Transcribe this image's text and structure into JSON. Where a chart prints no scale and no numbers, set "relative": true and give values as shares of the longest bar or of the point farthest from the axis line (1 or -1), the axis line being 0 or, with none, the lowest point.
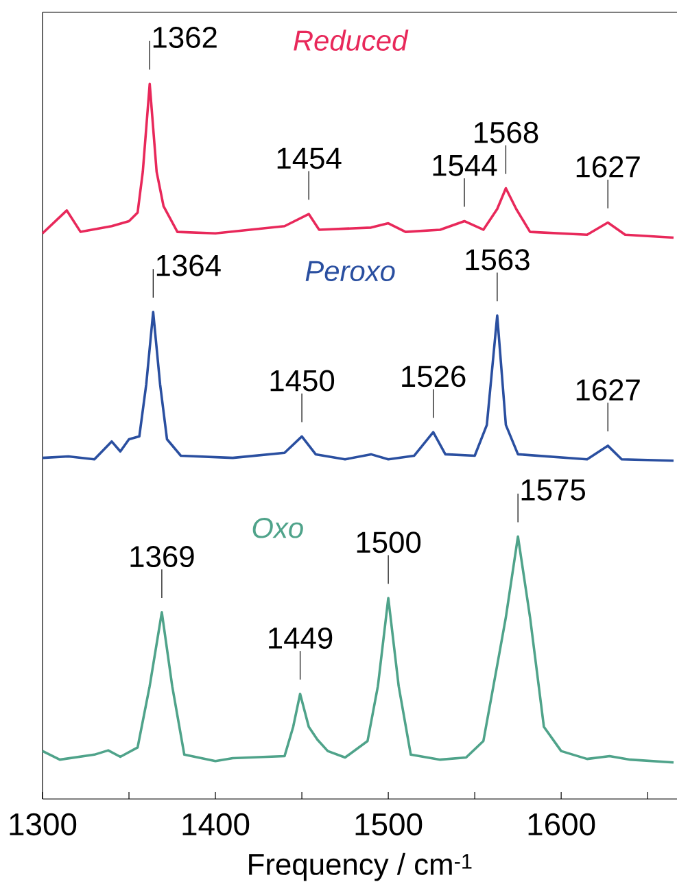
{
  "chart_data": {
    "type": "line",
    "xlabel": "Frequency / cm$^{-1}$",
    "relative": true,
    "xlim": [
      1300,
      1667
    ],
    "xticks": [
      1300,
      {
        "value": 1350,
        "label": null
      },
      1400,
      {
        "value": 1450,
        "label": null
      },
      1500,
      {
        "value": 1550,
        "label": null
      },
      1600,
      {
        "value": 1650,
        "label": null
      }
    ],
    "grid": false,
    "marker": "none",
    "line_style": "solid",
    "series": [
      {
        "name": "Reduced",
        "color": "#e8285a",
        "x": [
          1300,
          1314,
          1322,
          1340,
          1350,
          1355,
          1358,
          1362,
          1366,
          1370,
          1378,
          1400,
          1440,
          1454,
          1460,
          1490,
          1500,
          1510,
          1530,
          1544,
          1555,
          1563,
          1568,
          1574,
          1582,
          1615,
          1627,
          1637,
          1665
        ],
        "values": [
          0.791,
          0.823,
          0.793,
          0.801,
          0.808,
          0.82,
          0.877,
          1.0,
          0.877,
          0.829,
          0.793,
          0.791,
          0.801,
          0.818,
          0.796,
          0.799,
          0.805,
          0.793,
          0.796,
          0.808,
          0.796,
          0.825,
          0.854,
          0.825,
          0.793,
          0.789,
          0.806,
          0.789,
          0.785
        ]
      },
      {
        "name": "Peroxo",
        "color": "#2a4fa0",
        "x": [
          1300,
          1315,
          1330,
          1340,
          1345,
          1350,
          1356,
          1360,
          1364,
          1368,
          1372,
          1380,
          1410,
          1440,
          1450,
          1458,
          1475,
          1490,
          1500,
          1515,
          1526,
          1533,
          1550,
          1557,
          1563,
          1568,
          1575,
          1615,
          1627,
          1635,
          1665
        ],
        "values": [
          0.477,
          0.479,
          0.475,
          0.5,
          0.486,
          0.503,
          0.507,
          0.58,
          0.681,
          0.58,
          0.503,
          0.48,
          0.477,
          0.484,
          0.507,
          0.482,
          0.475,
          0.482,
          0.475,
          0.48,
          0.513,
          0.482,
          0.48,
          0.523,
          0.676,
          0.523,
          0.482,
          0.475,
          0.494,
          0.475,
          0.473
        ]
      },
      {
        "name": "Oxo",
        "color": "#4fa38a",
        "x": [
          1300,
          1310,
          1330,
          1338,
          1345,
          1355,
          1362,
          1369,
          1375,
          1382,
          1400,
          1410,
          1440,
          1445,
          1449,
          1454,
          1459,
          1465,
          1475,
          1488,
          1494,
          1500,
          1506,
          1513,
          1530,
          1545,
          1555,
          1563,
          1568,
          1575,
          1582,
          1590,
          1600,
          1615,
          1628,
          1640,
          1665
        ],
        "values": [
          0.067,
          0.055,
          0.062,
          0.068,
          0.059,
          0.072,
          0.158,
          0.261,
          0.158,
          0.062,
          0.053,
          0.057,
          0.06,
          0.101,
          0.147,
          0.101,
          0.083,
          0.067,
          0.058,
          0.081,
          0.158,
          0.281,
          0.158,
          0.062,
          0.055,
          0.058,
          0.081,
          0.187,
          0.254,
          0.367,
          0.254,
          0.101,
          0.067,
          0.056,
          0.06,
          0.055,
          0.051
        ]
      }
    ],
    "annotations": [
      {
        "text": "1362",
        "x": 1362,
        "y": 1.0
      },
      {
        "text": "1454",
        "x": 1454,
        "y": 0.818
      },
      {
        "text": "1544",
        "x": 1544,
        "y": 0.808
      },
      {
        "text": "1568",
        "x": 1568,
        "y": 0.854
      },
      {
        "text": "1627",
        "x": 1627,
        "y": 0.806
      },
      {
        "text": "1364",
        "x": 1364,
        "y": 0.681
      },
      {
        "text": "1450",
        "x": 1450,
        "y": 0.507
      },
      {
        "text": "1526",
        "x": 1526,
        "y": 0.513
      },
      {
        "text": "1563",
        "x": 1563,
        "y": 0.676
      },
      {
        "text": "1627",
        "x": 1627,
        "y": 0.494
      },
      {
        "text": "1369",
        "x": 1369,
        "y": 0.261
      },
      {
        "text": "1449",
        "x": 1449,
        "y": 0.147
      },
      {
        "text": "1500",
        "x": 1500,
        "y": 0.281
      },
      {
        "text": "1575",
        "x": 1575,
        "y": 0.367
      }
    ]
  }
}
